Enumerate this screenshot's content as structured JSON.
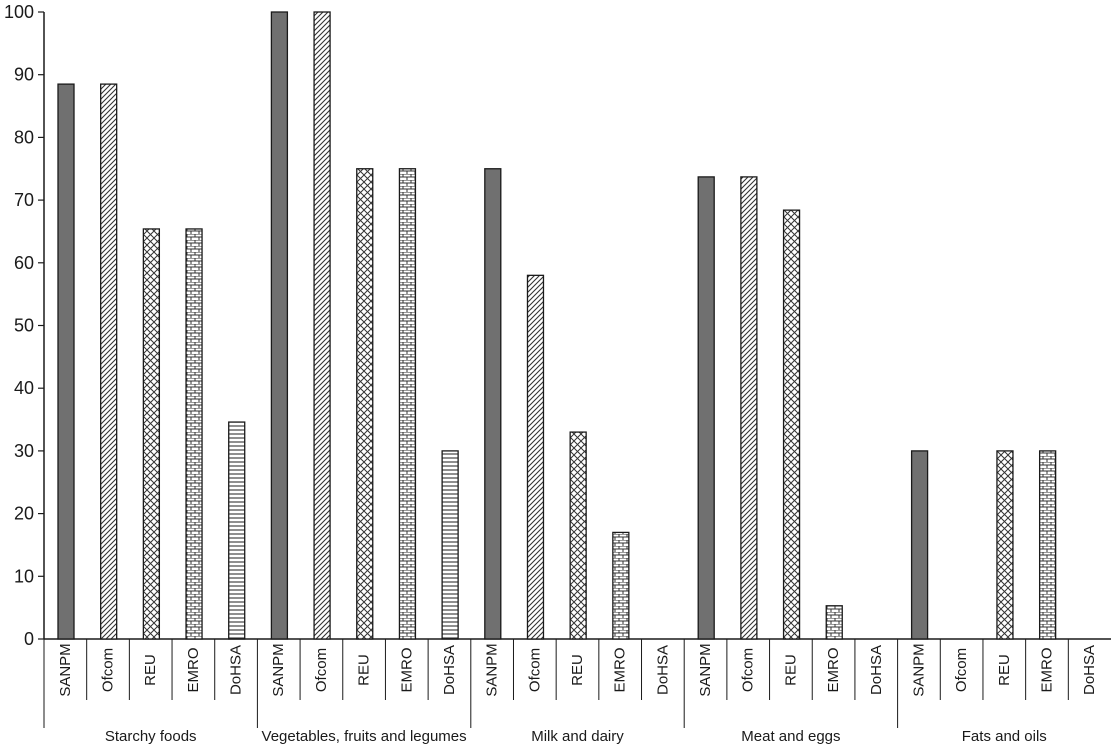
{
  "chart_data": {
    "type": "bar",
    "title": "",
    "xlabel": "",
    "ylabel": "",
    "ylim": [
      0,
      100
    ],
    "yticks": [
      "0",
      "10",
      "20",
      "30",
      "40",
      "50",
      "60",
      "70",
      "80",
      "90",
      "100"
    ],
    "grid": false,
    "legend": "none",
    "groups": [
      {
        "name": "Starchy foods",
        "bars": [
          {
            "label": "SANPM",
            "value": 88.5
          },
          {
            "label": "Ofcom",
            "value": 88.5
          },
          {
            "label": "REU",
            "value": 65.4
          },
          {
            "label": "EMRO",
            "value": 65.4
          },
          {
            "label": "DoHSA",
            "value": 34.6
          }
        ]
      },
      {
        "name": "Vegetables, fruits and legumes",
        "bars": [
          {
            "label": "SANPM",
            "value": 100
          },
          {
            "label": "Ofcom",
            "value": 100
          },
          {
            "label": "REU",
            "value": 75
          },
          {
            "label": "EMRO",
            "value": 75
          },
          {
            "label": "DoHSA",
            "value": 30
          }
        ]
      },
      {
        "name": "Milk and dairy",
        "bars": [
          {
            "label": "SANPM",
            "value": 75
          },
          {
            "label": "Ofcom",
            "value": 58
          },
          {
            "label": "REU",
            "value": 33
          },
          {
            "label": "EMRO",
            "value": 17
          },
          {
            "label": "DoHSA",
            "value": 0
          }
        ]
      },
      {
        "name": "Meat and eggs",
        "bars": [
          {
            "label": "SANPM",
            "value": 73.7
          },
          {
            "label": "Ofcom",
            "value": 73.7
          },
          {
            "label": "REU",
            "value": 68.4
          },
          {
            "label": "EMRO",
            "value": 5.3
          },
          {
            "label": "DoHSA",
            "value": 0
          }
        ]
      },
      {
        "name": "Fats and oils",
        "bars": [
          {
            "label": "SANPM",
            "value": 30
          },
          {
            "label": "Ofcom",
            "value": 0
          },
          {
            "label": "REU",
            "value": 30
          },
          {
            "label": "EMRO",
            "value": 30
          },
          {
            "label": "DoHSA",
            "value": 0
          }
        ]
      }
    ],
    "series_patterns": {
      "SANPM": "solid-gray",
      "Ofcom": "diagonal-hatch",
      "REU": "crosshatch",
      "EMRO": "brick",
      "DoHSA": "horizontal-lines"
    },
    "colors": {
      "solid_fill": "#707070",
      "stroke": "#1a1a1a",
      "background": "#ffffff"
    }
  }
}
